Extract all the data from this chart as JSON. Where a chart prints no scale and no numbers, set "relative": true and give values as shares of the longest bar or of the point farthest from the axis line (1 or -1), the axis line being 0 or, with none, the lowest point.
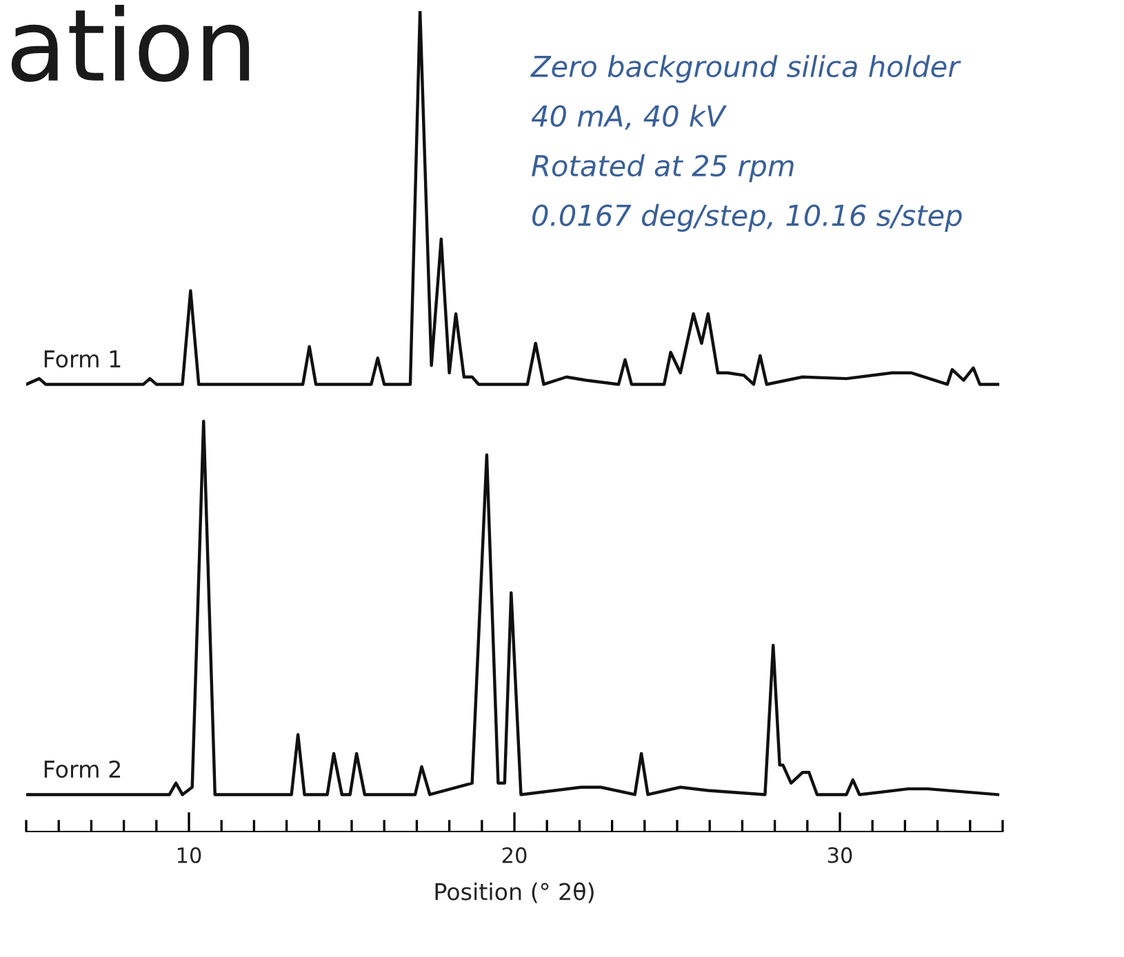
{
  "chart_data": {
    "type": "line",
    "title": "ation",
    "relative": true,
    "tick_labels": "x",
    "grid": false,
    "legend": false,
    "xlabel": "Position (° 2θ)",
    "xlim": [
      5,
      35
    ],
    "annotations": [
      "Zero background silica holder",
      "40 mA, 40 kV",
      "Rotated at 25 rpm",
      "0.0167 deg/step, 10.16 s/step"
    ],
    "xticks": [
      {
        "value": 5,
        "label": null
      },
      {
        "value": 6,
        "label": null
      },
      {
        "value": 7,
        "label": null
      },
      {
        "value": 8,
        "label": null
      },
      {
        "value": 9,
        "label": null
      },
      10,
      {
        "value": 11,
        "label": null
      },
      {
        "value": 12,
        "label": null
      },
      {
        "value": 13,
        "label": null
      },
      {
        "value": 14,
        "label": null
      },
      {
        "value": 15,
        "label": null
      },
      {
        "value": 16,
        "label": null
      },
      {
        "value": 17,
        "label": null
      },
      {
        "value": 18,
        "label": null
      },
      {
        "value": 19,
        "label": null
      },
      20,
      {
        "value": 21,
        "label": null
      },
      {
        "value": 22,
        "label": null
      },
      {
        "value": 23,
        "label": null
      },
      {
        "value": 24,
        "label": null
      },
      {
        "value": 25,
        "label": null
      },
      {
        "value": 26,
        "label": null
      },
      {
        "value": 27,
        "label": null
      },
      {
        "value": 28,
        "label": null
      },
      {
        "value": 29,
        "label": null
      },
      30,
      {
        "value": 31,
        "label": null
      },
      {
        "value": 32,
        "label": null
      },
      {
        "value": 33,
        "label": null
      },
      {
        "value": 34,
        "label": null
      },
      {
        "value": 35,
        "label": null
      }
    ],
    "series": [
      {
        "name": "Form 1",
        "color": "#111111",
        "x": [
          5.0,
          5.4,
          5.6,
          8.6,
          8.8,
          9.0,
          9.8,
          10.05,
          10.3,
          13.5,
          13.7,
          13.9,
          15.6,
          15.8,
          16.0,
          16.8,
          17.1,
          17.45,
          17.75,
          18.0,
          18.2,
          18.45,
          18.7,
          18.9,
          20.4,
          20.65,
          20.9,
          21.6,
          22.2,
          23.2,
          23.4,
          23.6,
          24.6,
          24.8,
          25.1,
          25.5,
          25.75,
          25.95,
          26.25,
          26.55,
          27.05,
          27.35,
          27.55,
          27.75,
          28.85,
          30.2,
          31.6,
          32.2,
          33.3,
          33.45,
          33.8,
          34.1,
          34.3,
          34.85
        ],
        "values": [
          0.545,
          0.552,
          0.545,
          0.545,
          0.552,
          0.545,
          0.545,
          0.659,
          0.545,
          0.545,
          0.591,
          0.545,
          0.545,
          0.577,
          0.545,
          0.545,
          1,
          0.568,
          0.722,
          0.559,
          0.631,
          0.554,
          0.554,
          0.545,
          0.545,
          0.595,
          0.545,
          0.554,
          0.55,
          0.545,
          0.575,
          0.545,
          0.545,
          0.584,
          0.559,
          0.631,
          0.595,
          0.631,
          0.559,
          0.559,
          0.556,
          0.545,
          0.58,
          0.545,
          0.554,
          0.552,
          0.559,
          0.559,
          0.545,
          0.563,
          0.55,
          0.565,
          0.545,
          0.545
        ]
      },
      {
        "name": "Form 2",
        "color": "#111111",
        "x": [
          5.0,
          9.4,
          9.6,
          9.8,
          10.1,
          10.45,
          10.8,
          11.8,
          13.15,
          13.35,
          13.55,
          14.25,
          14.45,
          14.7,
          14.95,
          15.15,
          15.4,
          16.95,
          17.15,
          17.4,
          18.7,
          19.15,
          19.5,
          19.7,
          19.9,
          20.2,
          22.05,
          22.65,
          23.7,
          23.9,
          24.1,
          25.1,
          25.95,
          27.7,
          27.95,
          28.15,
          28.25,
          28.5,
          28.85,
          29.05,
          29.3,
          30.2,
          30.4,
          30.6,
          32.1,
          32.7,
          34.85
        ],
        "values": [
          0.045,
          0.045,
          0.059,
          0.045,
          0.054,
          0.5,
          0.045,
          0.045,
          0.045,
          0.118,
          0.045,
          0.045,
          0.095,
          0.045,
          0.045,
          0.095,
          0.045,
          0.045,
          0.079,
          0.045,
          0.059,
          0.459,
          0.059,
          0.059,
          0.291,
          0.045,
          0.054,
          0.054,
          0.045,
          0.095,
          0.045,
          0.054,
          0.05,
          0.045,
          0.227,
          0.081,
          0.081,
          0.059,
          0.072,
          0.072,
          0.045,
          0.045,
          0.063,
          0.045,
          0.052,
          0.052,
          0.045
        ]
      }
    ]
  }
}
